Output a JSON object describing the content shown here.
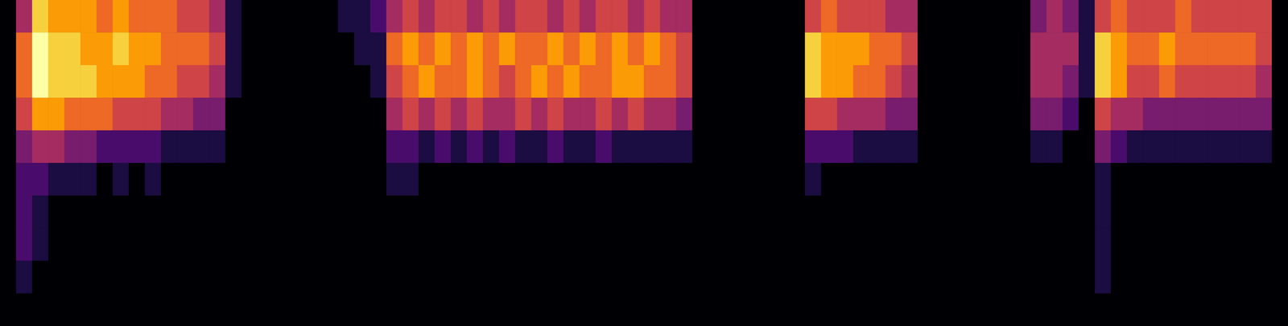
{
  "chart_data": {
    "type": "heatmap",
    "tick_labels": false,
    "grid": false,
    "zlim": [
      0,
      9
    ],
    "cells": [
      [
        0,
        4,
        8,
        7,
        7,
        7,
        6,
        7,
        6,
        6,
        6,
        5,
        5,
        4,
        1,
        0,
        0,
        0,
        0,
        0,
        0,
        1,
        1,
        2,
        4,
        5,
        4,
        5,
        5,
        4,
        5,
        4,
        5,
        5,
        4,
        5,
        4,
        5,
        5,
        4,
        5,
        4,
        4,
        0,
        0,
        0,
        0,
        0,
        0,
        0,
        5,
        6,
        5,
        5,
        5,
        4,
        4,
        0,
        0,
        0,
        0,
        0,
        0,
        0,
        3,
        4,
        3,
        1,
        5,
        6,
        5,
        5,
        5,
        6,
        5,
        5,
        5,
        5,
        5,
        0
      ],
      [
        0,
        6,
        9,
        8,
        8,
        7,
        7,
        8,
        7,
        7,
        6,
        6,
        6,
        5,
        1,
        0,
        0,
        0,
        0,
        0,
        0,
        0,
        1,
        1,
        6,
        7,
        6,
        7,
        6,
        7,
        6,
        7,
        6,
        6,
        7,
        6,
        7,
        6,
        7,
        6,
        7,
        6,
        5,
        0,
        0,
        0,
        0,
        0,
        0,
        0,
        8,
        7,
        7,
        7,
        6,
        6,
        5,
        0,
        0,
        0,
        0,
        0,
        0,
        0,
        4,
        4,
        4,
        1,
        8,
        7,
        6,
        6,
        7,
        6,
        6,
        6,
        6,
        6,
        5,
        0
      ],
      [
        0,
        6,
        9,
        8,
        8,
        8,
        7,
        7,
        7,
        6,
        6,
        5,
        5,
        4,
        1,
        0,
        0,
        0,
        0,
        0,
        0,
        0,
        0,
        1,
        5,
        6,
        7,
        6,
        6,
        7,
        6,
        5,
        6,
        7,
        6,
        7,
        6,
        6,
        7,
        7,
        6,
        6,
        5,
        0,
        0,
        0,
        0,
        0,
        0,
        0,
        8,
        7,
        7,
        6,
        6,
        5,
        4,
        0,
        0,
        0,
        0,
        0,
        0,
        0,
        4,
        4,
        3,
        1,
        8,
        7,
        5,
        5,
        6,
        5,
        5,
        5,
        5,
        5,
        4,
        0
      ],
      [
        0,
        5,
        7,
        7,
        6,
        6,
        6,
        5,
        5,
        5,
        4,
        4,
        3,
        3,
        0,
        0,
        0,
        0,
        0,
        0,
        0,
        0,
        0,
        0,
        4,
        5,
        4,
        5,
        4,
        5,
        4,
        4,
        5,
        4,
        5,
        4,
        4,
        5,
        4,
        5,
        4,
        4,
        3,
        0,
        0,
        0,
        0,
        0,
        0,
        0,
        5,
        5,
        4,
        4,
        4,
        3,
        3,
        0,
        0,
        0,
        0,
        0,
        0,
        0,
        3,
        3,
        2,
        0,
        5,
        4,
        4,
        3,
        3,
        3,
        3,
        3,
        3,
        3,
        3,
        0
      ],
      [
        0,
        3,
        4,
        4,
        3,
        3,
        2,
        2,
        2,
        2,
        1,
        1,
        1,
        1,
        0,
        0,
        0,
        0,
        0,
        0,
        0,
        0,
        0,
        0,
        2,
        2,
        1,
        2,
        1,
        2,
        1,
        2,
        1,
        1,
        2,
        1,
        1,
        2,
        1,
        1,
        1,
        1,
        1,
        0,
        0,
        0,
        0,
        0,
        0,
        0,
        2,
        2,
        2,
        1,
        1,
        1,
        1,
        0,
        0,
        0,
        0,
        0,
        0,
        0,
        1,
        1,
        0,
        0,
        3,
        2,
        1,
        1,
        1,
        1,
        1,
        1,
        1,
        1,
        1,
        0
      ],
      [
        0,
        2,
        2,
        1,
        1,
        1,
        0,
        1,
        0,
        1,
        0,
        0,
        0,
        0,
        0,
        0,
        0,
        0,
        0,
        0,
        0,
        0,
        0,
        0,
        1,
        1,
        0,
        0,
        0,
        0,
        0,
        0,
        0,
        0,
        0,
        0,
        0,
        0,
        0,
        0,
        0,
        0,
        0,
        0,
        0,
        0,
        0,
        0,
        0,
        0,
        1,
        0,
        0,
        0,
        0,
        0,
        0,
        0,
        0,
        0,
        0,
        0,
        0,
        0,
        0,
        0,
        0,
        0,
        1,
        0,
        0,
        0,
        0,
        0,
        0,
        0,
        0,
        0,
        0,
        0
      ],
      [
        0,
        2,
        1,
        0,
        0,
        0,
        0,
        0,
        0,
        0,
        0,
        0,
        0,
        0,
        0,
        0,
        0,
        0,
        0,
        0,
        0,
        0,
        0,
        0,
        0,
        0,
        0,
        0,
        0,
        0,
        0,
        0,
        0,
        0,
        0,
        0,
        0,
        0,
        0,
        0,
        0,
        0,
        0,
        0,
        0,
        0,
        0,
        0,
        0,
        0,
        0,
        0,
        0,
        0,
        0,
        0,
        0,
        0,
        0,
        0,
        0,
        0,
        0,
        0,
        0,
        0,
        0,
        0,
        1,
        0,
        0,
        0,
        0,
        0,
        0,
        0,
        0,
        0,
        0,
        0
      ],
      [
        0,
        2,
        1,
        0,
        0,
        0,
        0,
        0,
        0,
        0,
        0,
        0,
        0,
        0,
        0,
        0,
        0,
        0,
        0,
        0,
        0,
        0,
        0,
        0,
        0,
        0,
        0,
        0,
        0,
        0,
        0,
        0,
        0,
        0,
        0,
        0,
        0,
        0,
        0,
        0,
        0,
        0,
        0,
        0,
        0,
        0,
        0,
        0,
        0,
        0,
        0,
        0,
        0,
        0,
        0,
        0,
        0,
        0,
        0,
        0,
        0,
        0,
        0,
        0,
        0,
        0,
        0,
        0,
        1,
        0,
        0,
        0,
        0,
        0,
        0,
        0,
        0,
        0,
        0,
        0
      ],
      [
        0,
        1,
        0,
        0,
        0,
        0,
        0,
        0,
        0,
        0,
        0,
        0,
        0,
        0,
        0,
        0,
        0,
        0,
        0,
        0,
        0,
        0,
        0,
        0,
        0,
        0,
        0,
        0,
        0,
        0,
        0,
        0,
        0,
        0,
        0,
        0,
        0,
        0,
        0,
        0,
        0,
        0,
        0,
        0,
        0,
        0,
        0,
        0,
        0,
        0,
        0,
        0,
        0,
        0,
        0,
        0,
        0,
        0,
        0,
        0,
        0,
        0,
        0,
        0,
        0,
        0,
        0,
        0,
        1,
        0,
        0,
        0,
        0,
        0,
        0,
        0,
        0,
        0,
        0,
        0
      ],
      [
        0,
        0,
        0,
        0,
        0,
        0,
        0,
        0,
        0,
        0,
        0,
        0,
        0,
        0,
        0,
        0,
        0,
        0,
        0,
        0,
        0,
        0,
        0,
        0,
        0,
        0,
        0,
        0,
        0,
        0,
        0,
        0,
        0,
        0,
        0,
        0,
        0,
        0,
        0,
        0,
        0,
        0,
        0,
        0,
        0,
        0,
        0,
        0,
        0,
        0,
        0,
        0,
        0,
        0,
        0,
        0,
        0,
        0,
        0,
        0,
        0,
        0,
        0,
        0,
        0,
        0,
        0,
        0,
        0,
        0,
        0,
        0,
        0,
        0,
        0,
        0,
        0,
        0,
        0,
        0
      ]
    ]
  }
}
